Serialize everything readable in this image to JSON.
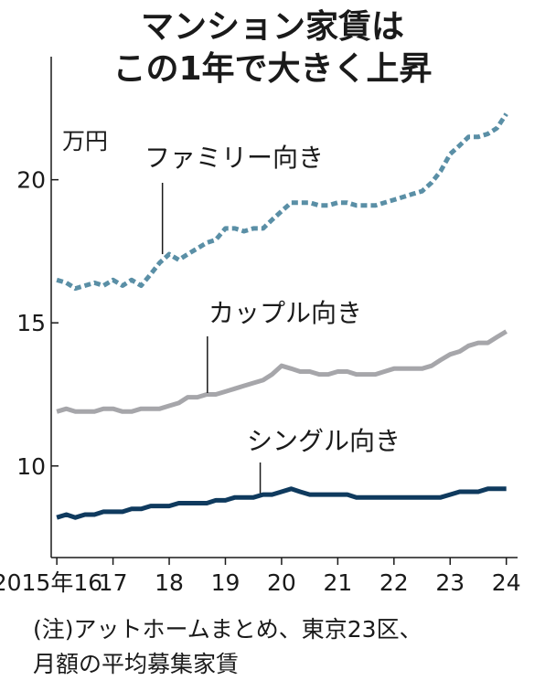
{
  "title": {
    "line1": "マンション家賃は",
    "line2": "この1年で大きく上昇"
  },
  "note": {
    "line1": "(注)アットホームまとめ、東京23区、",
    "line2": "月額の平均募集家賃"
  },
  "chart_data": {
    "type": "line",
    "ylabel": "万円",
    "ylim": [
      6.8,
      24.3
    ],
    "xlim": [
      2015.9,
      2024.2
    ],
    "yticks": [
      10,
      15,
      20
    ],
    "ytick_labels": [
      "10",
      "15",
      "20"
    ],
    "xticks": [
      2016,
      2017,
      2018,
      2019,
      2020,
      2021,
      2022,
      2023,
      2024
    ],
    "xtick_labels": [
      "2015年16",
      "17",
      "18",
      "19",
      "20",
      "21",
      "22",
      "23",
      "24"
    ],
    "grid": false,
    "legend": "none",
    "series": [
      {
        "name": "ファミリー向き",
        "color": "#5a8fa6",
        "style": "dashed",
        "label_anchor": [
          2017.88,
          17.4
        ],
        "points": [
          [
            2016.0,
            16.5
          ],
          [
            2016.17,
            16.4
          ],
          [
            2016.33,
            16.2
          ],
          [
            2016.5,
            16.3
          ],
          [
            2016.67,
            16.4
          ],
          [
            2016.83,
            16.3
          ],
          [
            2017.0,
            16.5
          ],
          [
            2017.17,
            16.3
          ],
          [
            2017.33,
            16.5
          ],
          [
            2017.5,
            16.3
          ],
          [
            2017.67,
            16.7
          ],
          [
            2017.83,
            17.1
          ],
          [
            2018.0,
            17.4
          ],
          [
            2018.17,
            17.2
          ],
          [
            2018.33,
            17.4
          ],
          [
            2018.5,
            17.6
          ],
          [
            2018.67,
            17.8
          ],
          [
            2018.83,
            17.9
          ],
          [
            2019.0,
            18.3
          ],
          [
            2019.17,
            18.3
          ],
          [
            2019.33,
            18.2
          ],
          [
            2019.5,
            18.3
          ],
          [
            2019.67,
            18.3
          ],
          [
            2019.83,
            18.6
          ],
          [
            2020.0,
            18.9
          ],
          [
            2020.17,
            19.2
          ],
          [
            2020.33,
            19.2
          ],
          [
            2020.5,
            19.2
          ],
          [
            2020.67,
            19.1
          ],
          [
            2020.83,
            19.1
          ],
          [
            2021.0,
            19.2
          ],
          [
            2021.17,
            19.2
          ],
          [
            2021.33,
            19.1
          ],
          [
            2021.5,
            19.1
          ],
          [
            2021.67,
            19.1
          ],
          [
            2021.83,
            19.2
          ],
          [
            2022.0,
            19.3
          ],
          [
            2022.17,
            19.4
          ],
          [
            2022.33,
            19.5
          ],
          [
            2022.5,
            19.6
          ],
          [
            2022.67,
            19.9
          ],
          [
            2022.83,
            20.3
          ],
          [
            2023.0,
            20.9
          ],
          [
            2023.17,
            21.2
          ],
          [
            2023.33,
            21.5
          ],
          [
            2023.5,
            21.5
          ],
          [
            2023.67,
            21.6
          ],
          [
            2023.83,
            21.8
          ],
          [
            2024.0,
            22.3
          ]
        ]
      },
      {
        "name": "カップル向き",
        "color": "#a6a6aa",
        "style": "solid",
        "label_anchor": [
          2018.68,
          12.55
        ],
        "points": [
          [
            2016.0,
            11.9
          ],
          [
            2016.17,
            12.0
          ],
          [
            2016.33,
            11.9
          ],
          [
            2016.5,
            11.9
          ],
          [
            2016.67,
            11.9
          ],
          [
            2016.83,
            12.0
          ],
          [
            2017.0,
            12.0
          ],
          [
            2017.17,
            11.9
          ],
          [
            2017.33,
            11.9
          ],
          [
            2017.5,
            12.0
          ],
          [
            2017.67,
            12.0
          ],
          [
            2017.83,
            12.0
          ],
          [
            2018.0,
            12.1
          ],
          [
            2018.17,
            12.2
          ],
          [
            2018.33,
            12.4
          ],
          [
            2018.5,
            12.4
          ],
          [
            2018.67,
            12.5
          ],
          [
            2018.83,
            12.5
          ],
          [
            2019.0,
            12.6
          ],
          [
            2019.17,
            12.7
          ],
          [
            2019.33,
            12.8
          ],
          [
            2019.5,
            12.9
          ],
          [
            2019.67,
            13.0
          ],
          [
            2019.83,
            13.2
          ],
          [
            2020.0,
            13.5
          ],
          [
            2020.17,
            13.4
          ],
          [
            2020.33,
            13.3
          ],
          [
            2020.5,
            13.3
          ],
          [
            2020.67,
            13.2
          ],
          [
            2020.83,
            13.2
          ],
          [
            2021.0,
            13.3
          ],
          [
            2021.17,
            13.3
          ],
          [
            2021.33,
            13.2
          ],
          [
            2021.5,
            13.2
          ],
          [
            2021.67,
            13.2
          ],
          [
            2021.83,
            13.3
          ],
          [
            2022.0,
            13.4
          ],
          [
            2022.17,
            13.4
          ],
          [
            2022.33,
            13.4
          ],
          [
            2022.5,
            13.4
          ],
          [
            2022.67,
            13.5
          ],
          [
            2022.83,
            13.7
          ],
          [
            2023.0,
            13.9
          ],
          [
            2023.17,
            14.0
          ],
          [
            2023.33,
            14.2
          ],
          [
            2023.5,
            14.3
          ],
          [
            2023.67,
            14.3
          ],
          [
            2023.83,
            14.5
          ],
          [
            2024.0,
            14.7
          ]
        ]
      },
      {
        "name": "シングル向き",
        "color": "#0f3a5e",
        "style": "solid",
        "label_anchor": [
          2019.62,
          9.05
        ],
        "points": [
          [
            2016.0,
            8.2
          ],
          [
            2016.17,
            8.3
          ],
          [
            2016.33,
            8.2
          ],
          [
            2016.5,
            8.3
          ],
          [
            2016.67,
            8.3
          ],
          [
            2016.83,
            8.4
          ],
          [
            2017.0,
            8.4
          ],
          [
            2017.17,
            8.4
          ],
          [
            2017.33,
            8.5
          ],
          [
            2017.5,
            8.5
          ],
          [
            2017.67,
            8.6
          ],
          [
            2017.83,
            8.6
          ],
          [
            2018.0,
            8.6
          ],
          [
            2018.17,
            8.7
          ],
          [
            2018.33,
            8.7
          ],
          [
            2018.5,
            8.7
          ],
          [
            2018.67,
            8.7
          ],
          [
            2018.83,
            8.8
          ],
          [
            2019.0,
            8.8
          ],
          [
            2019.17,
            8.9
          ],
          [
            2019.33,
            8.9
          ],
          [
            2019.5,
            8.9
          ],
          [
            2019.67,
            9.0
          ],
          [
            2019.83,
            9.0
          ],
          [
            2020.0,
            9.1
          ],
          [
            2020.17,
            9.2
          ],
          [
            2020.33,
            9.1
          ],
          [
            2020.5,
            9.0
          ],
          [
            2020.67,
            9.0
          ],
          [
            2020.83,
            9.0
          ],
          [
            2021.0,
            9.0
          ],
          [
            2021.17,
            9.0
          ],
          [
            2021.33,
            8.9
          ],
          [
            2021.5,
            8.9
          ],
          [
            2021.67,
            8.9
          ],
          [
            2021.83,
            8.9
          ],
          [
            2022.0,
            8.9
          ],
          [
            2022.17,
            8.9
          ],
          [
            2022.33,
            8.9
          ],
          [
            2022.5,
            8.9
          ],
          [
            2022.67,
            8.9
          ],
          [
            2022.83,
            8.9
          ],
          [
            2023.0,
            9.0
          ],
          [
            2023.17,
            9.1
          ],
          [
            2023.33,
            9.1
          ],
          [
            2023.5,
            9.1
          ],
          [
            2023.67,
            9.2
          ],
          [
            2023.83,
            9.2
          ],
          [
            2024.0,
            9.2
          ]
        ]
      }
    ]
  }
}
